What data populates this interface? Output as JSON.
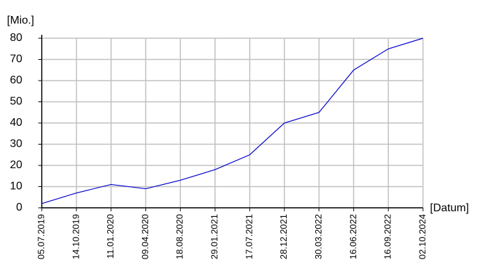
{
  "chart_data": {
    "type": "line",
    "y_label": "[Mio.]",
    "x_label": "[Datum]",
    "categories": [
      "05.07.2019",
      "14.10.2019",
      "11.01.2020",
      "09.04.2020",
      "18.08.2020",
      "29.01.2021",
      "17.07.2021",
      "28.12.2021",
      "30.03.2022",
      "16.06.2022",
      "16.09.2022",
      "02.10.2024"
    ],
    "series": [
      {
        "color": "#0000cc",
        "values": [
          2,
          7,
          11,
          9,
          13,
          18,
          25,
          40,
          45,
          65,
          75,
          80
        ]
      }
    ],
    "ylim": [
      0,
      80
    ],
    "yticks": [
      0,
      10,
      20,
      30,
      40,
      50,
      60,
      70,
      80
    ],
    "grid": true
  }
}
